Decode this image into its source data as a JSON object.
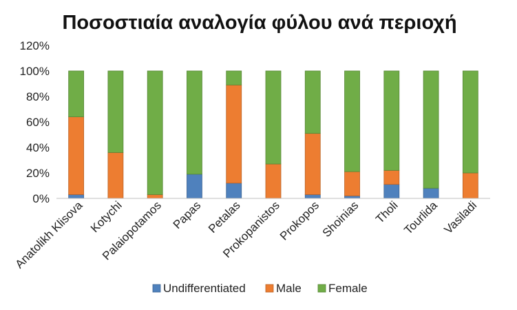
{
  "chart_data": {
    "type": "bar",
    "stacked": true,
    "title": "Ποσοστιαία αναλογία φύλου ανά περιοχή",
    "categories": [
      "Anatolikh Klisova",
      "Kotychi",
      "Palaiopotamos",
      "Papas",
      "Petalas",
      "Prokopanistos",
      "Prokopos",
      "Shoinias",
      "Tholi",
      "Tourlida",
      "Vasiladi"
    ],
    "series": [
      {
        "name": "Undifferentiated",
        "color": "#4f81bd",
        "values": [
          3,
          0,
          0,
          19,
          12,
          0,
          3,
          2,
          11,
          8,
          0
        ]
      },
      {
        "name": "Male",
        "color": "#ed7d31",
        "values": [
          61,
          36,
          3,
          0,
          77,
          27,
          48,
          19,
          11,
          0,
          20
        ]
      },
      {
        "name": "Female",
        "color": "#70ad47",
        "values": [
          36,
          64,
          97,
          81,
          11,
          73,
          49,
          79,
          78,
          92,
          80
        ]
      }
    ],
    "yticks": [
      "0%",
      "20%",
      "40%",
      "60%",
      "80%",
      "100%",
      "120%"
    ],
    "ylim": [
      0,
      120
    ],
    "grid": false,
    "legend": "bottom"
  }
}
